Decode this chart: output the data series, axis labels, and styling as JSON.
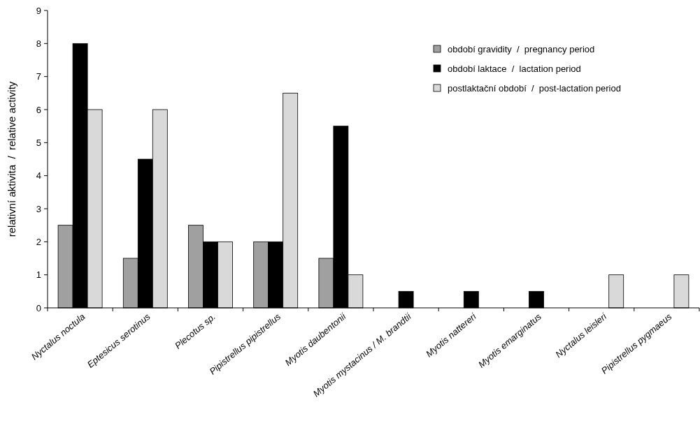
{
  "chart_data": {
    "type": "bar",
    "ylabel": "relativní aktivita  /  relative activity",
    "categories": [
      "Nyctalus noctula",
      "Eptesicus serotinus",
      "Plecotus sp.",
      "Pipistrellus pipistrellus",
      "Myotis daubentonii",
      "Myotis mystacinus / M. brandtii",
      "Myotis nattereri",
      "Myotis emarginatus",
      "Nyctalus leisleri",
      "Pipistrellus pygmaeus"
    ],
    "series": [
      {
        "name": "období gravidity  /  pregnancy period",
        "color": "#a0a0a0",
        "values": [
          2.5,
          1.5,
          2.5,
          2,
          1.5,
          null,
          null,
          null,
          null,
          null
        ]
      },
      {
        "name": "období laktace  /  lactation period",
        "color": "#000000",
        "values": [
          8,
          4.5,
          2,
          2,
          5.5,
          0.5,
          0.5,
          0.5,
          null,
          null
        ]
      },
      {
        "name": "postlaktační období  /  post-lactation period",
        "color": "#d9d9d9",
        "values": [
          6,
          6,
          2,
          6.5,
          1,
          null,
          null,
          null,
          1,
          1
        ]
      }
    ],
    "ylim": [
      0,
      9
    ],
    "yticks": [
      0,
      1,
      2,
      3,
      4,
      5,
      6,
      7,
      8,
      9
    ],
    "grid": false,
    "legend": "top right"
  }
}
